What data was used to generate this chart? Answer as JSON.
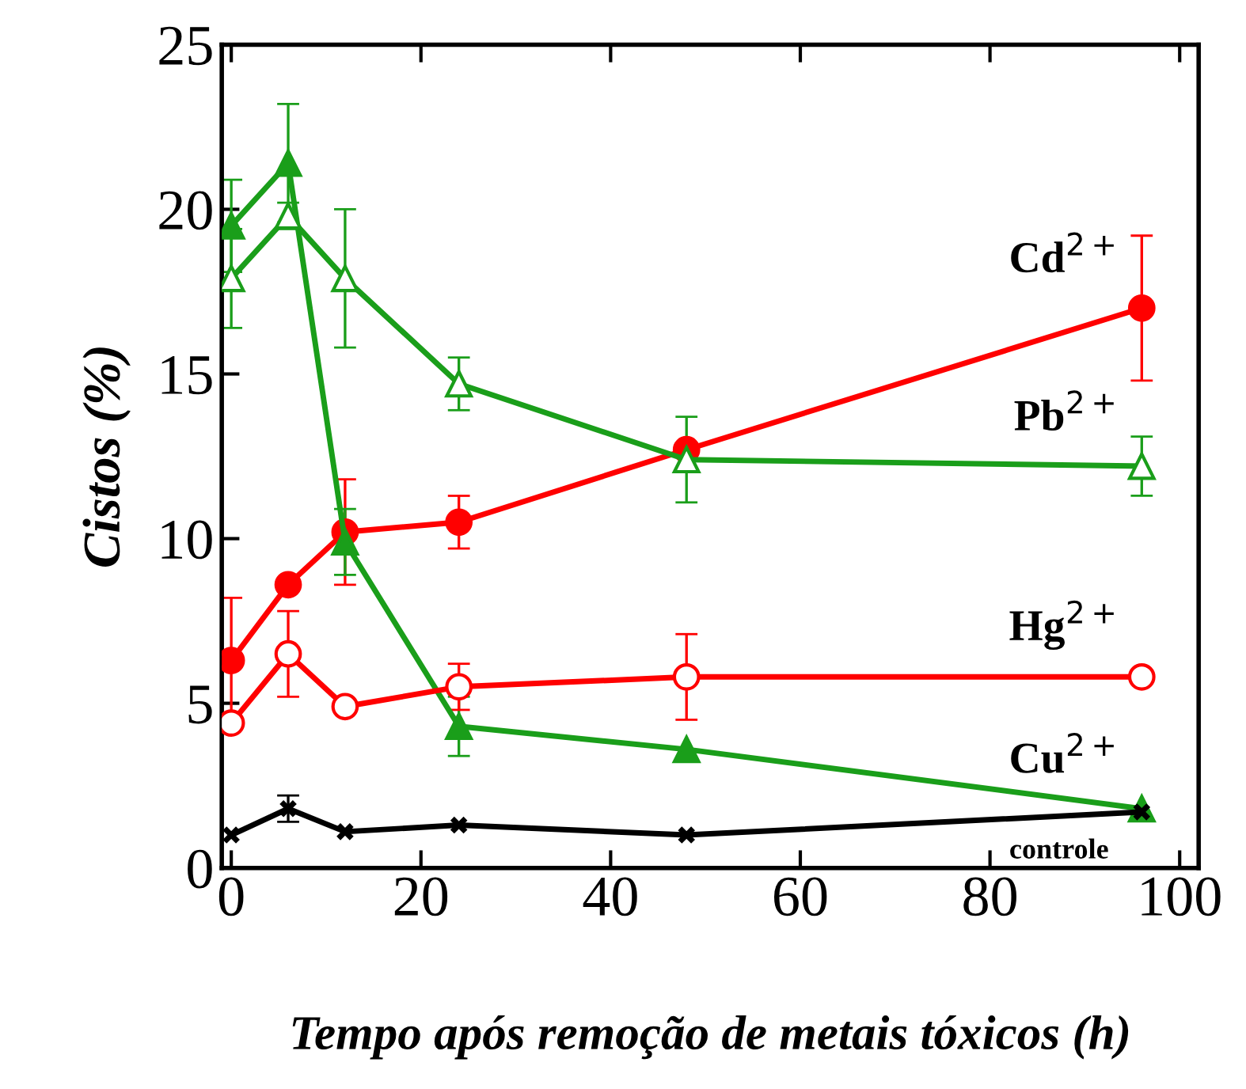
{
  "chart_data": {
    "type": "line",
    "xlabel": "Tempo após remoção de metais tóxicos (h)",
    "ylabel": "Cistos (%)",
    "x": [
      0,
      6,
      12,
      24,
      48,
      96
    ],
    "series": [
      {
        "name": "Cd$^{2+}$",
        "color": "#ff0000",
        "marker": "circle",
        "values": [
          6.3,
          8.6,
          10.2,
          10.5,
          12.7,
          17.0
        ],
        "errors": [
          1.9,
          null,
          1.6,
          0.8,
          null,
          2.2
        ]
      },
      {
        "name": "Cu$^{2+}$",
        "color": "#1a9e1a",
        "marker": "triangle",
        "values": [
          19.5,
          21.4,
          9.9,
          4.3,
          3.6,
          1.8
        ],
        "errors": [
          1.4,
          1.8,
          1.0,
          0.9,
          null,
          null
        ]
      },
      {
        "name": "Hg$^{2+}$",
        "color": "#ff0000",
        "marker": "circle",
        "values": [
          4.4,
          6.5,
          4.9,
          5.5,
          5.8,
          5.8
        ],
        "errors": [
          null,
          1.3,
          null,
          0.7,
          1.3,
          null
        ]
      },
      {
        "name": "Pb$^{2+}$",
        "color": "#1a9e1a",
        "marker": "triangle",
        "values": [
          17.9,
          19.8,
          17.9,
          14.7,
          12.4,
          12.2
        ],
        "errors": [
          1.5,
          0.4,
          2.1,
          0.8,
          1.3,
          0.9
        ]
      },
      {
        "name": "controle",
        "color": "#000000",
        "marker": "cross",
        "values": [
          1.0,
          1.8,
          1.1,
          1.3,
          1.0,
          1.7
        ],
        "errors": [
          null,
          0.4,
          null,
          null,
          null,
          null
        ]
      }
    ],
    "xlim": [
      -1,
      102
    ],
    "ylim": [
      0,
      25
    ],
    "xticks": [
      0,
      20,
      40,
      60,
      80,
      100
    ],
    "yticks": [
      0,
      5,
      10,
      15,
      20,
      25
    ],
    "grid": false,
    "legend": false
  }
}
